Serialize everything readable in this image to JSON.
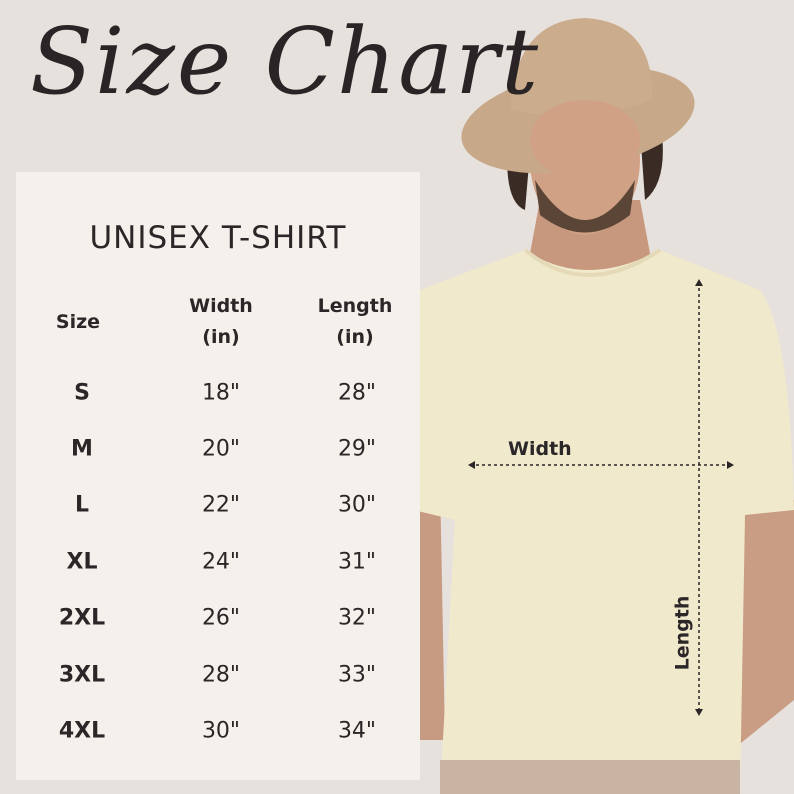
{
  "heading": "Size Chart",
  "product": "UNISEX T-SHIRT",
  "columns": {
    "size": "Size",
    "width": [
      "Width",
      "(in)"
    ],
    "length": [
      "Length",
      "(in)"
    ]
  },
  "rows": [
    {
      "size": "S",
      "width": "18\"",
      "length": "28\""
    },
    {
      "size": "M",
      "width": "20\"",
      "length": "29\""
    },
    {
      "size": "L",
      "width": "22\"",
      "length": "30\""
    },
    {
      "size": "XL",
      "width": "24\"",
      "length": "31\""
    },
    {
      "size": "2XL",
      "width": "26\"",
      "length": "32\""
    },
    {
      "size": "3XL",
      "width": "28\"",
      "length": "33\""
    },
    {
      "size": "4XL",
      "width": "30\"",
      "length": "34\""
    }
  ],
  "diagram": {
    "width_label": "Width",
    "length_label": "Length"
  },
  "colors": {
    "background": "#e7e1dd",
    "panel": "#f4f1ec",
    "shirt": "#f1e9cc",
    "hat": "#c9a889",
    "text": "#2b2627"
  }
}
